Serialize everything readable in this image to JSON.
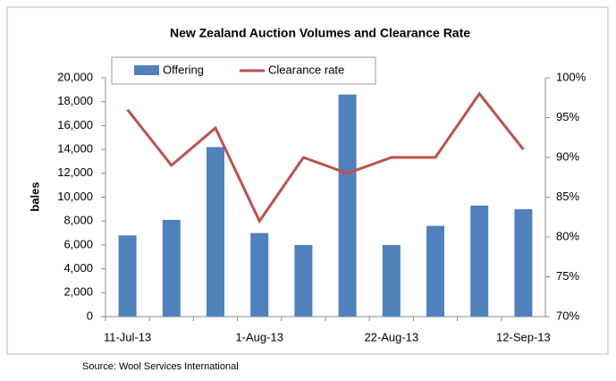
{
  "chart_data": {
    "type": "bar",
    "title": "New Zealand Auction Volumes and Clearance Rate",
    "y_label": "bales",
    "source": "Source: Wool Services International",
    "categories": [
      "11-Jul-13",
      null,
      null,
      "1-Aug-13",
      null,
      null,
      "22-Aug-13",
      null,
      null,
      "12-Sep-13"
    ],
    "series": [
      {
        "name": "Offering",
        "type": "bar",
        "color": "#4f81bd",
        "values": [
          6800,
          8100,
          14200,
          7000,
          6000,
          18600,
          6000,
          7600,
          9300,
          9000
        ]
      },
      {
        "name": "Clearance rate",
        "type": "line",
        "axis": "y2",
        "color": "#c0504d",
        "values": [
          96,
          89,
          93.7,
          82,
          90,
          88,
          90,
          90,
          98,
          91
        ]
      }
    ],
    "ylim": [
      0,
      20000
    ],
    "yticks": [
      0,
      {
        "value": 2000,
        "label": "2,000"
      },
      {
        "value": 4000,
        "label": "4,000"
      },
      {
        "value": 6000,
        "label": "6,000"
      },
      {
        "value": 8000,
        "label": "8,000"
      },
      {
        "value": 10000,
        "label": "10,000"
      },
      {
        "value": 12000,
        "label": "12,000"
      },
      {
        "value": 14000,
        "label": "14,000"
      },
      {
        "value": 16000,
        "label": "16,000"
      },
      {
        "value": 18000,
        "label": "18,000"
      },
      {
        "value": 20000,
        "label": "20,000"
      }
    ],
    "y2lim": [
      70,
      100
    ],
    "y2ticks": [
      {
        "value": 70,
        "label": "70%"
      },
      {
        "value": 75,
        "label": "75%"
      },
      {
        "value": 80,
        "label": "80%"
      },
      {
        "value": 85,
        "label": "85%"
      },
      {
        "value": 90,
        "label": "90%"
      },
      {
        "value": 95,
        "label": "95%"
      },
      {
        "value": 100,
        "label": "100%"
      }
    ],
    "legend": "top"
  }
}
